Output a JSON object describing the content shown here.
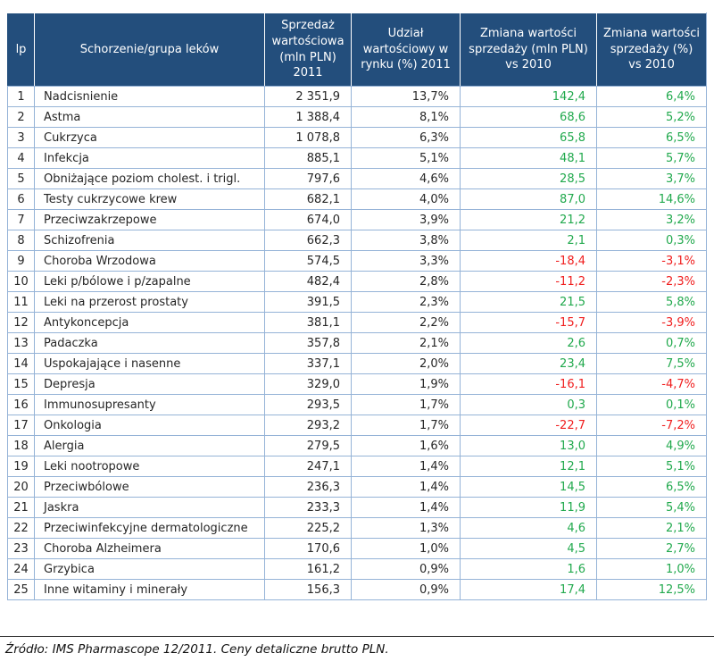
{
  "table": {
    "columns": [
      {
        "label": "lp"
      },
      {
        "label": "Schorzenie/grupa leków"
      },
      {
        "label": "Sprzedaż wartościowa (mln PLN) 2011"
      },
      {
        "label": "Udział wartościowy w rynku (%) 2011"
      },
      {
        "label": "Zmiana wartości sprzedaży (mln PLN) vs 2010"
      },
      {
        "label": "Zmiana wartości sprzedaży (%) vs 2010"
      }
    ],
    "rows": [
      {
        "lp": "1",
        "name": "Nadcisnienie",
        "sales": "2 351,9",
        "share": "13,7%",
        "change_value": "142,4",
        "change_pct": "6,4%"
      },
      {
        "lp": "2",
        "name": "Astma",
        "sales": "1 388,4",
        "share": "8,1%",
        "change_value": "68,6",
        "change_pct": "5,2%"
      },
      {
        "lp": "3",
        "name": "Cukrzyca",
        "sales": "1 078,8",
        "share": "6,3%",
        "change_value": "65,8",
        "change_pct": "6,5%"
      },
      {
        "lp": "4",
        "name": "Infekcja",
        "sales": "885,1",
        "share": "5,1%",
        "change_value": "48,1",
        "change_pct": "5,7%"
      },
      {
        "lp": "5",
        "name": "Obniżające poziom cholest. i trigl.",
        "sales": "797,6",
        "share": "4,6%",
        "change_value": "28,5",
        "change_pct": "3,7%"
      },
      {
        "lp": "6",
        "name": "Testy cukrzycowe krew",
        "sales": "682,1",
        "share": "4,0%",
        "change_value": "87,0",
        "change_pct": "14,6%"
      },
      {
        "lp": "7",
        "name": "Przeciwzakrzepowe",
        "sales": "674,0",
        "share": "3,9%",
        "change_value": "21,2",
        "change_pct": "3,2%"
      },
      {
        "lp": "8",
        "name": "Schizofrenia",
        "sales": "662,3",
        "share": "3,8%",
        "change_value": "2,1",
        "change_pct": "0,3%"
      },
      {
        "lp": "9",
        "name": "Choroba Wrzodowa",
        "sales": "574,5",
        "share": "3,3%",
        "change_value": "-18,4",
        "change_pct": "-3,1%"
      },
      {
        "lp": "10",
        "name": "Leki p/bólowe i p/zapalne",
        "sales": "482,4",
        "share": "2,8%",
        "change_value": "-11,2",
        "change_pct": "-2,3%"
      },
      {
        "lp": "11",
        "name": "Leki na przerost prostaty",
        "sales": "391,5",
        "share": "2,3%",
        "change_value": "21,5",
        "change_pct": "5,8%"
      },
      {
        "lp": "12",
        "name": "Antykoncepcja",
        "sales": "381,1",
        "share": "2,2%",
        "change_value": "-15,7",
        "change_pct": "-3,9%"
      },
      {
        "lp": "13",
        "name": "Padaczka",
        "sales": "357,8",
        "share": "2,1%",
        "change_value": "2,6",
        "change_pct": "0,7%"
      },
      {
        "lp": "14",
        "name": "Uspokajające i nasenne",
        "sales": "337,1",
        "share": "2,0%",
        "change_value": "23,4",
        "change_pct": "7,5%"
      },
      {
        "lp": "15",
        "name": "Depresja",
        "sales": "329,0",
        "share": "1,9%",
        "change_value": "-16,1",
        "change_pct": "-4,7%"
      },
      {
        "lp": "16",
        "name": "Immunosupresanty",
        "sales": "293,5",
        "share": "1,7%",
        "change_value": "0,3",
        "change_pct": "0,1%"
      },
      {
        "lp": "17",
        "name": "Onkologia",
        "sales": "293,2",
        "share": "1,7%",
        "change_value": "-22,7",
        "change_pct": "-7,2%"
      },
      {
        "lp": "18",
        "name": "Alergia",
        "sales": "279,5",
        "share": "1,6%",
        "change_value": "13,0",
        "change_pct": "4,9%"
      },
      {
        "lp": "19",
        "name": "Leki nootropowe",
        "sales": "247,1",
        "share": "1,4%",
        "change_value": "12,1",
        "change_pct": "5,1%"
      },
      {
        "lp": "20",
        "name": "Przeciwbólowe",
        "sales": "236,3",
        "share": "1,4%",
        "change_value": "14,5",
        "change_pct": "6,5%"
      },
      {
        "lp": "21",
        "name": "Jaskra",
        "sales": "233,3",
        "share": "1,4%",
        "change_value": "11,9",
        "change_pct": "5,4%"
      },
      {
        "lp": "22",
        "name": "Przeciwinfekcyjne dermatologiczne",
        "sales": "225,2",
        "share": "1,3%",
        "change_value": "4,6",
        "change_pct": "2,1%"
      },
      {
        "lp": "23",
        "name": "Choroba Alzheimera",
        "sales": "170,6",
        "share": "1,0%",
        "change_value": "4,5",
        "change_pct": "2,7%"
      },
      {
        "lp": "24",
        "name": "Grzybica",
        "sales": "161,2",
        "share": "0,9%",
        "change_value": "1,6",
        "change_pct": "1,0%"
      },
      {
        "lp": "25",
        "name": "Inne witaminy i minerały",
        "sales": "156,3",
        "share": "0,9%",
        "change_value": "17,4",
        "change_pct": "12,5%"
      }
    ]
  },
  "footer": {
    "source": "Źródło: IMS Pharmascope 12/2011. Ceny detaliczne brutto PLN."
  },
  "colors": {
    "header_bg": "#234E7C",
    "header_text": "#FFFFFF",
    "border": "#95B3D7",
    "text": "#262626",
    "positive": "#21A94D",
    "negative": "#F01E1E"
  }
}
